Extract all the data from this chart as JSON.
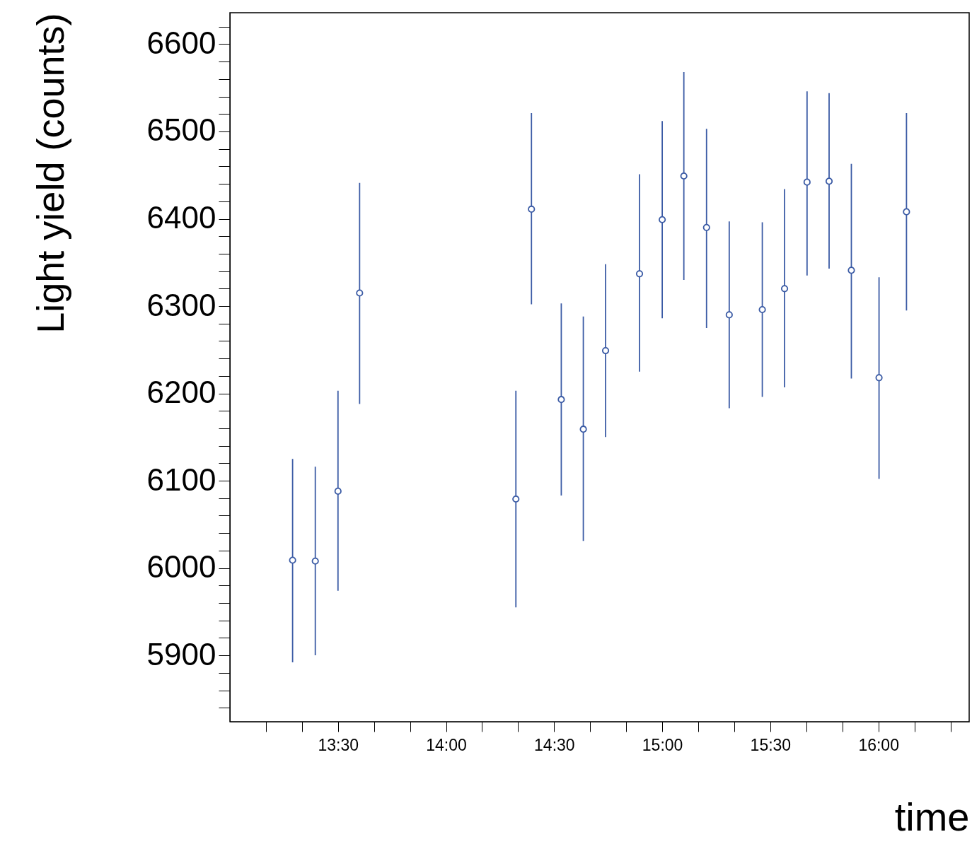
{
  "chart_data": {
    "type": "scatter",
    "xlabel": "time",
    "ylabel": "Light yield (counts)",
    "marker": "circle",
    "x": [
      13.29,
      13.395,
      13.5,
      13.6,
      14.323,
      14.395,
      14.533,
      14.635,
      14.738,
      14.895,
      15.0,
      15.1,
      15.205,
      15.31,
      15.463,
      15.566,
      15.67,
      15.772,
      15.875,
      16.003,
      16.13
    ],
    "series": [
      {
        "color": "#3b5ba5",
        "values": [
          6009,
          6008,
          6088,
          6315,
          6079,
          6411,
          6193,
          6159,
          6249,
          6337,
          6399,
          6449,
          6390,
          6290,
          6296,
          6320,
          6442,
          6443,
          6341,
          6218,
          6408
        ],
        "errors": [
          [
            5892,
            6125
          ],
          [
            5900,
            6116
          ],
          [
            5974,
            6203
          ],
          [
            6188,
            6441
          ],
          [
            5955,
            6203
          ],
          [
            6302,
            6521
          ],
          [
            6083,
            6303
          ],
          [
            6031,
            6288
          ],
          [
            6150,
            6348
          ],
          [
            6225,
            6451
          ],
          [
            6286,
            6512
          ],
          [
            6330,
            6568
          ],
          [
            6275,
            6503
          ],
          [
            6183,
            6397
          ],
          [
            6196,
            6396
          ],
          [
            6207,
            6434
          ],
          [
            6335,
            6546
          ],
          [
            6343,
            6544
          ],
          [
            6217,
            6463
          ],
          [
            6102,
            6333
          ],
          [
            6295,
            6521
          ]
        ]
      }
    ],
    "xlim": [
      13.0,
      16.42
    ],
    "xticks": [
      {
        "value": 13.1667,
        "label": null
      },
      {
        "value": 13.3333,
        "label": null
      },
      {
        "value": 13.5,
        "label": "13:30"
      },
      {
        "value": 13.6667,
        "label": null
      },
      {
        "value": 13.8333,
        "label": null
      },
      {
        "value": 14.0,
        "label": "14:00"
      },
      {
        "value": 14.1667,
        "label": null
      },
      {
        "value": 14.3333,
        "label": null
      },
      {
        "value": 14.5,
        "label": "14:30"
      },
      {
        "value": 14.6667,
        "label": null
      },
      {
        "value": 14.8333,
        "label": null
      },
      {
        "value": 15.0,
        "label": "15:00"
      },
      {
        "value": 15.1667,
        "label": null
      },
      {
        "value": 15.3333,
        "label": null
      },
      {
        "value": 15.5,
        "label": "15:30"
      },
      {
        "value": 15.6667,
        "label": null
      },
      {
        "value": 15.8333,
        "label": null
      },
      {
        "value": 16.0,
        "label": "16:00"
      },
      {
        "value": 16.1667,
        "label": null
      },
      {
        "value": 16.3333,
        "label": null
      }
    ],
    "ylim": [
      5824,
      6636
    ],
    "yticks": [
      {
        "value": 5840,
        "label": null
      },
      {
        "value": 5860,
        "label": null
      },
      {
        "value": 5880,
        "label": null
      },
      5900,
      {
        "value": 5920,
        "label": null
      },
      {
        "value": 5940,
        "label": null
      },
      {
        "value": 5960,
        "label": null
      },
      {
        "value": 5980,
        "label": null
      },
      6000,
      {
        "value": 6020,
        "label": null
      },
      {
        "value": 6040,
        "label": null
      },
      {
        "value": 6060,
        "label": null
      },
      {
        "value": 6080,
        "label": null
      },
      6100,
      {
        "value": 6120,
        "label": null
      },
      {
        "value": 6140,
        "label": null
      },
      {
        "value": 6160,
        "label": null
      },
      {
        "value": 6180,
        "label": null
      },
      6200,
      {
        "value": 6220,
        "label": null
      },
      {
        "value": 6240,
        "label": null
      },
      {
        "value": 6260,
        "label": null
      },
      {
        "value": 6280,
        "label": null
      },
      6300,
      {
        "value": 6320,
        "label": null
      },
      {
        "value": 6340,
        "label": null
      },
      {
        "value": 6360,
        "label": null
      },
      {
        "value": 6380,
        "label": null
      },
      6400,
      {
        "value": 6420,
        "label": null
      },
      {
        "value": 6440,
        "label": null
      },
      {
        "value": 6460,
        "label": null
      },
      {
        "value": 6480,
        "label": null
      },
      6500,
      {
        "value": 6520,
        "label": null
      },
      {
        "value": 6540,
        "label": null
      },
      {
        "value": 6560,
        "label": null
      },
      {
        "value": 6580,
        "label": null
      },
      6600,
      {
        "value": 6620,
        "label": null
      }
    ]
  }
}
